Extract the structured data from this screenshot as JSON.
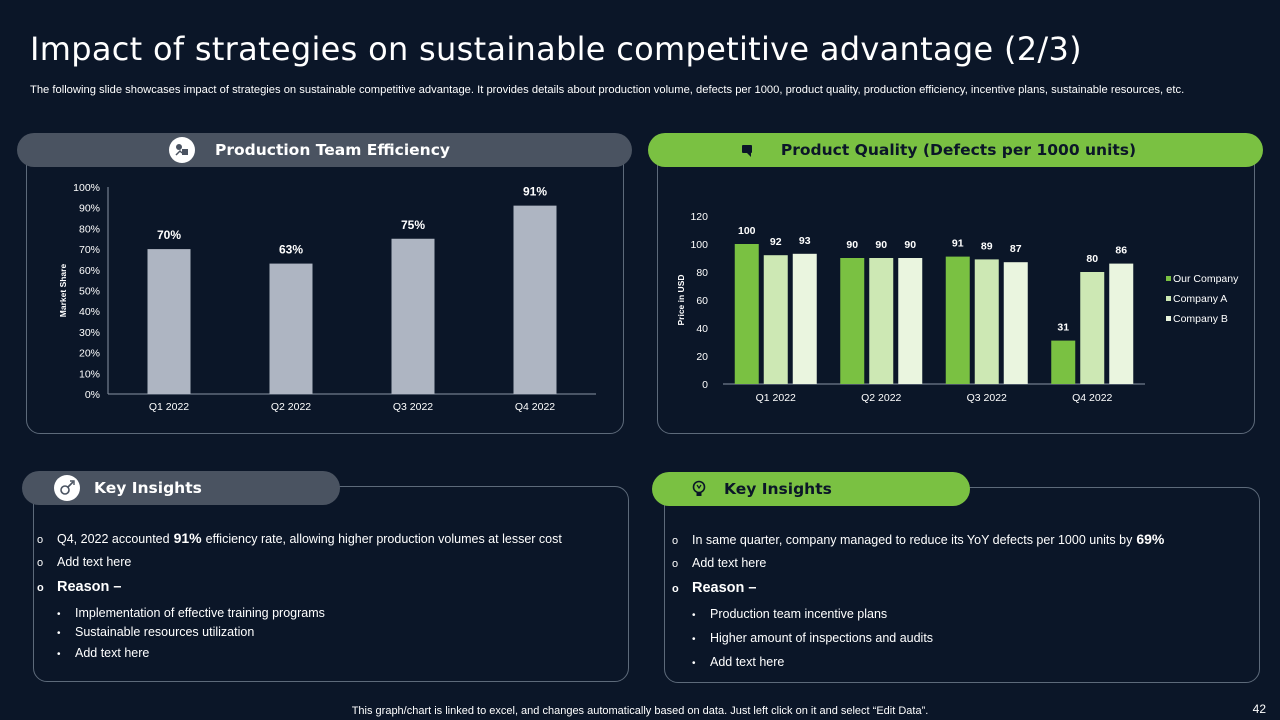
{
  "title": "Impact of strategies on sustainable competitive advantage (2/3)",
  "subtitle": "The following slide showcases impact of strategies on sustainable competitive advantage. It provides details about production volume, defects per 1000, product quality,  production efficiency, incentive plans, sustainable resources, etc.",
  "left_panel": {
    "header": "Production Team Efficiency",
    "icon": "team-efficiency-icon"
  },
  "right_panel": {
    "header": "Product Quality (Defects per 1000 units)",
    "icon": "quality-icon"
  },
  "colors": {
    "bg": "#0b1628",
    "gray_bar": "#aeb5c2",
    "accent_green": "#7ac142",
    "company_a": "#cde8b4",
    "company_b": "#eaf5df"
  },
  "chart_data": [
    {
      "type": "bar",
      "title": "Production Team Efficiency",
      "categories": [
        "Q1 2022",
        "Q2 2022",
        "Q3 2022",
        "Q4 2022"
      ],
      "values": [
        70,
        63,
        75,
        91
      ],
      "data_labels": [
        "70%",
        "63%",
        "75%",
        "91%"
      ],
      "ylabel": "Market Share",
      "xlabel": "",
      "ylim": [
        0,
        100
      ],
      "yticks": [
        "0%",
        "10%",
        "20%",
        "30%",
        "40%",
        "50%",
        "60%",
        "70%",
        "80%",
        "90%",
        "100%"
      ],
      "grid": false
    },
    {
      "type": "bar",
      "title": "Product Quality (Defects per 1000 units)",
      "categories": [
        "Q1 2022",
        "Q2 2022",
        "Q3 2022",
        "Q4 2022"
      ],
      "series": [
        {
          "name": "Our Company",
          "values": [
            100,
            90,
            91,
            31
          ]
        },
        {
          "name": "Company A",
          "values": [
            92,
            90,
            89,
            80
          ]
        },
        {
          "name": "Company B",
          "values": [
            93,
            90,
            87,
            86
          ]
        }
      ],
      "ylabel": "Price in USD",
      "xlabel": "",
      "ylim": [
        0,
        120
      ],
      "yticks": [
        "0",
        "20",
        "40",
        "60",
        "80",
        "100",
        "120"
      ],
      "legend": "right",
      "grid": false
    }
  ],
  "left_insights": {
    "header": "Key Insights",
    "icon": "rocket-icon",
    "line1_pre": "Q4, 2022 accounted",
    "line1_bold": "91%",
    "line1_post": "efficiency rate, allowing higher production volumes at lesser cost",
    "line2": "Add text here",
    "reason": "Reason –",
    "bullets": [
      "Implementation of effective training programs",
      "Sustainable resources utilization",
      "Add text here"
    ]
  },
  "right_insights": {
    "header": "Key Insights",
    "icon": "lightbulb-icon",
    "line1_pre": "In same quarter, company managed to reduce its YoY defects per 1000 units by",
    "line1_bold": "69%",
    "line2": "Add text here",
    "reason": "Reason –",
    "bullets": [
      "Production team incentive plans",
      "Higher amount of inspections and audits",
      "Add text here"
    ]
  },
  "footer": "This graph/chart is linked to excel, and changes automatically based on data. Just left click on it and select “Edit Data”.",
  "page_number": "42"
}
